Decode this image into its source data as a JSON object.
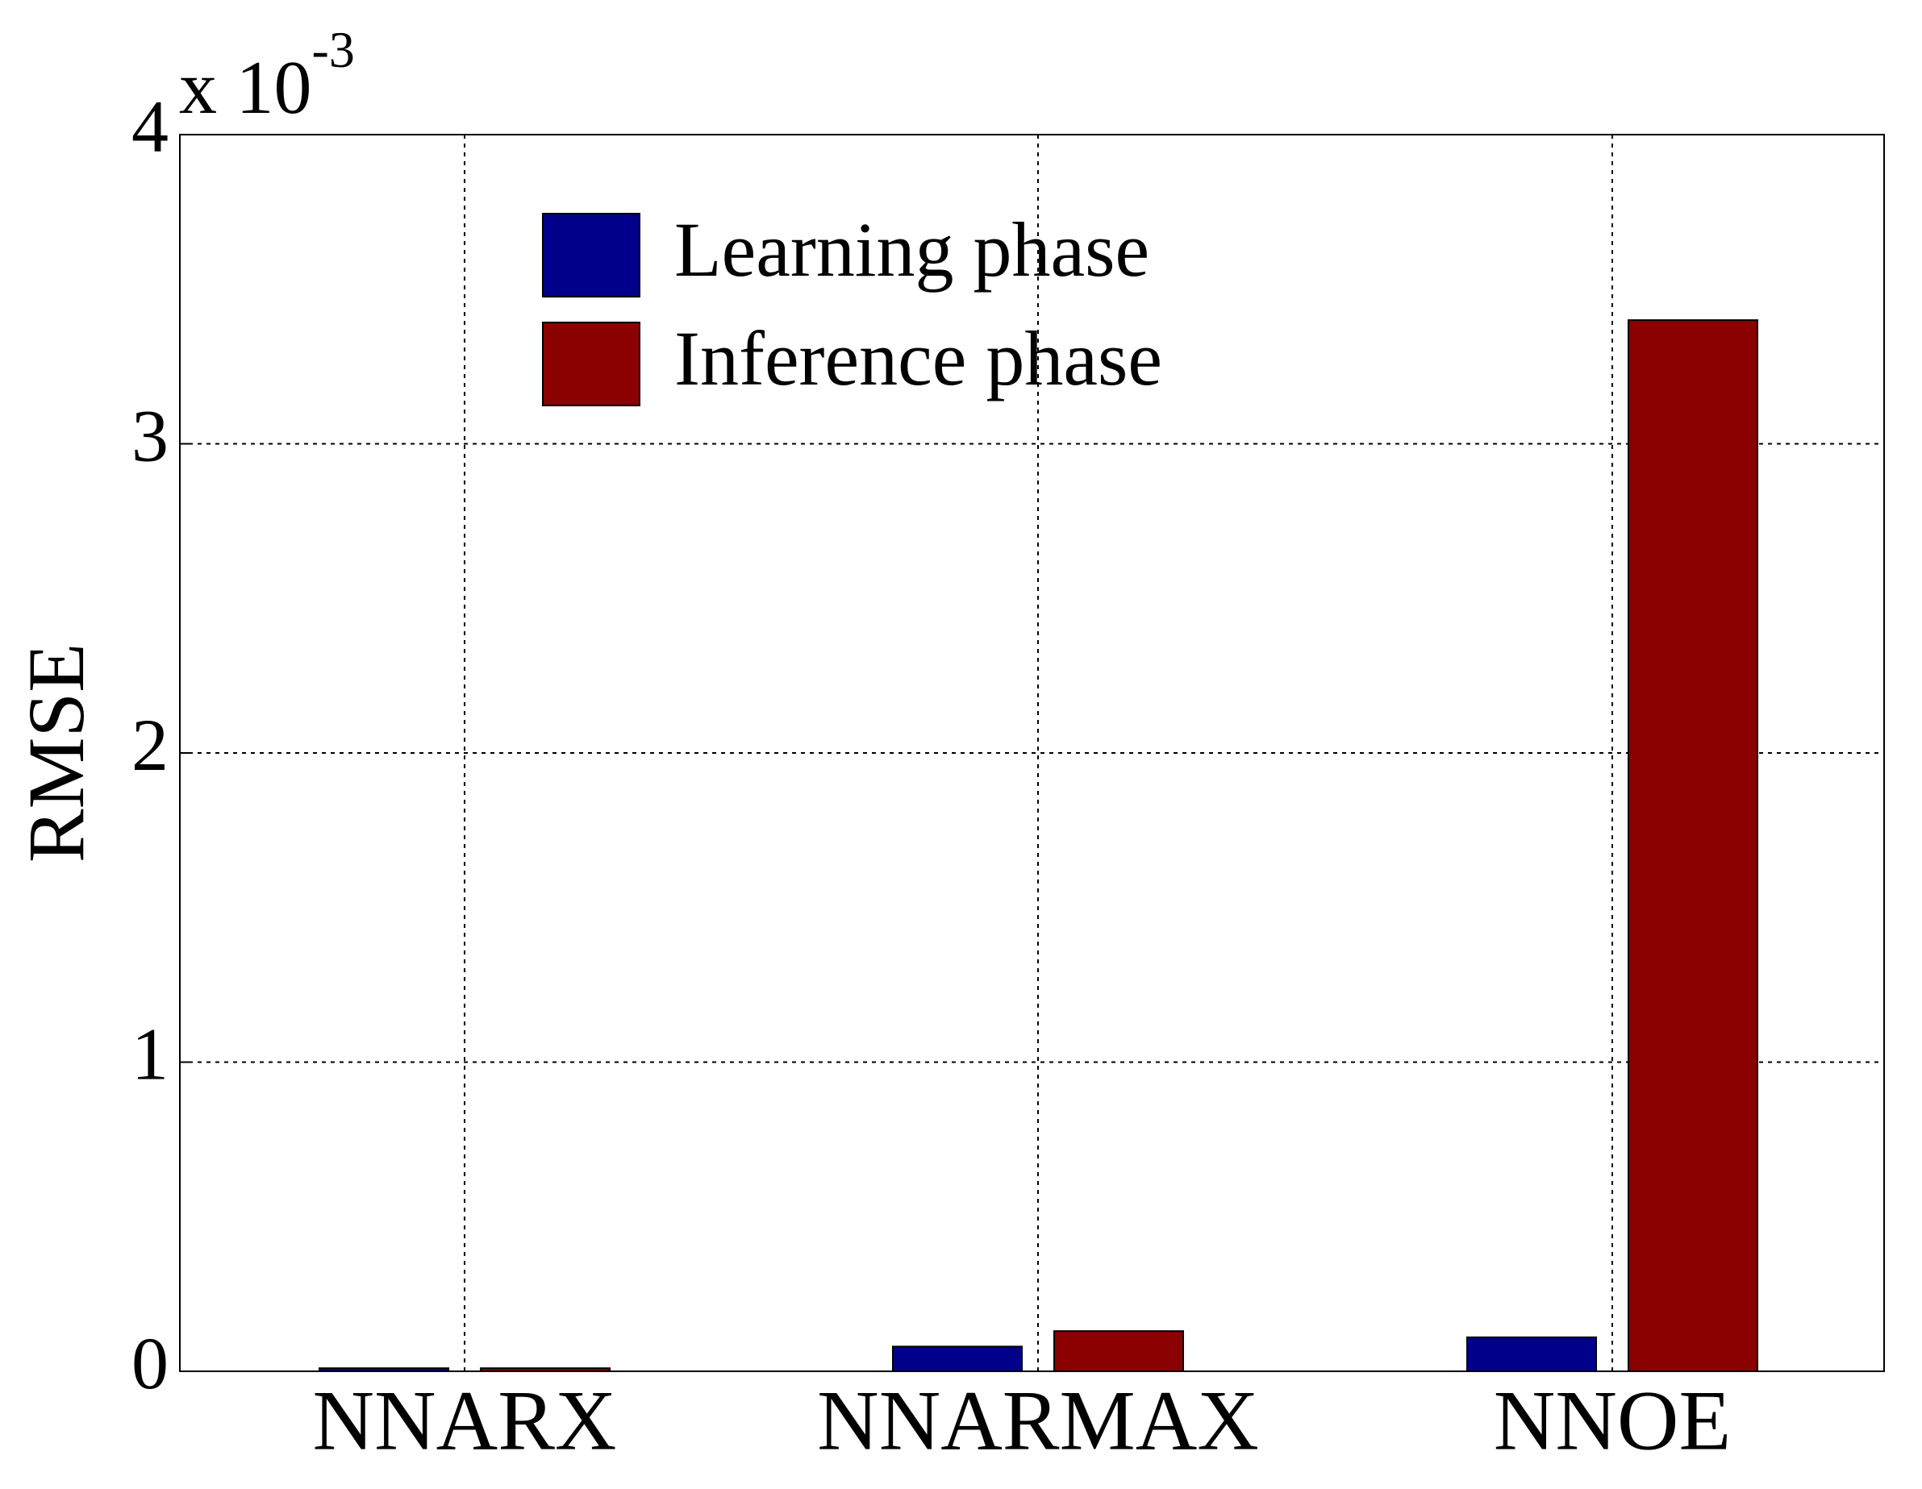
{
  "chart_data": {
    "type": "bar",
    "y_label": "RMSE",
    "axis_multiplier": {
      "base": "x 10",
      "exponent": "-3"
    },
    "categories": [
      "NNARX",
      "NNARMAX",
      "NNOE"
    ],
    "series": [
      {
        "name": "Learning phase",
        "color": "#00008b",
        "values": [
          0.01,
          0.08,
          0.11
        ]
      },
      {
        "name": "Inference phase",
        "color": "#8b0000",
        "values": [
          0.01,
          0.13,
          3.4
        ]
      }
    ],
    "ylim": [
      0,
      4
    ],
    "yticks": [
      0,
      1,
      2,
      3,
      4
    ],
    "grid": true,
    "legend": "upper left"
  }
}
